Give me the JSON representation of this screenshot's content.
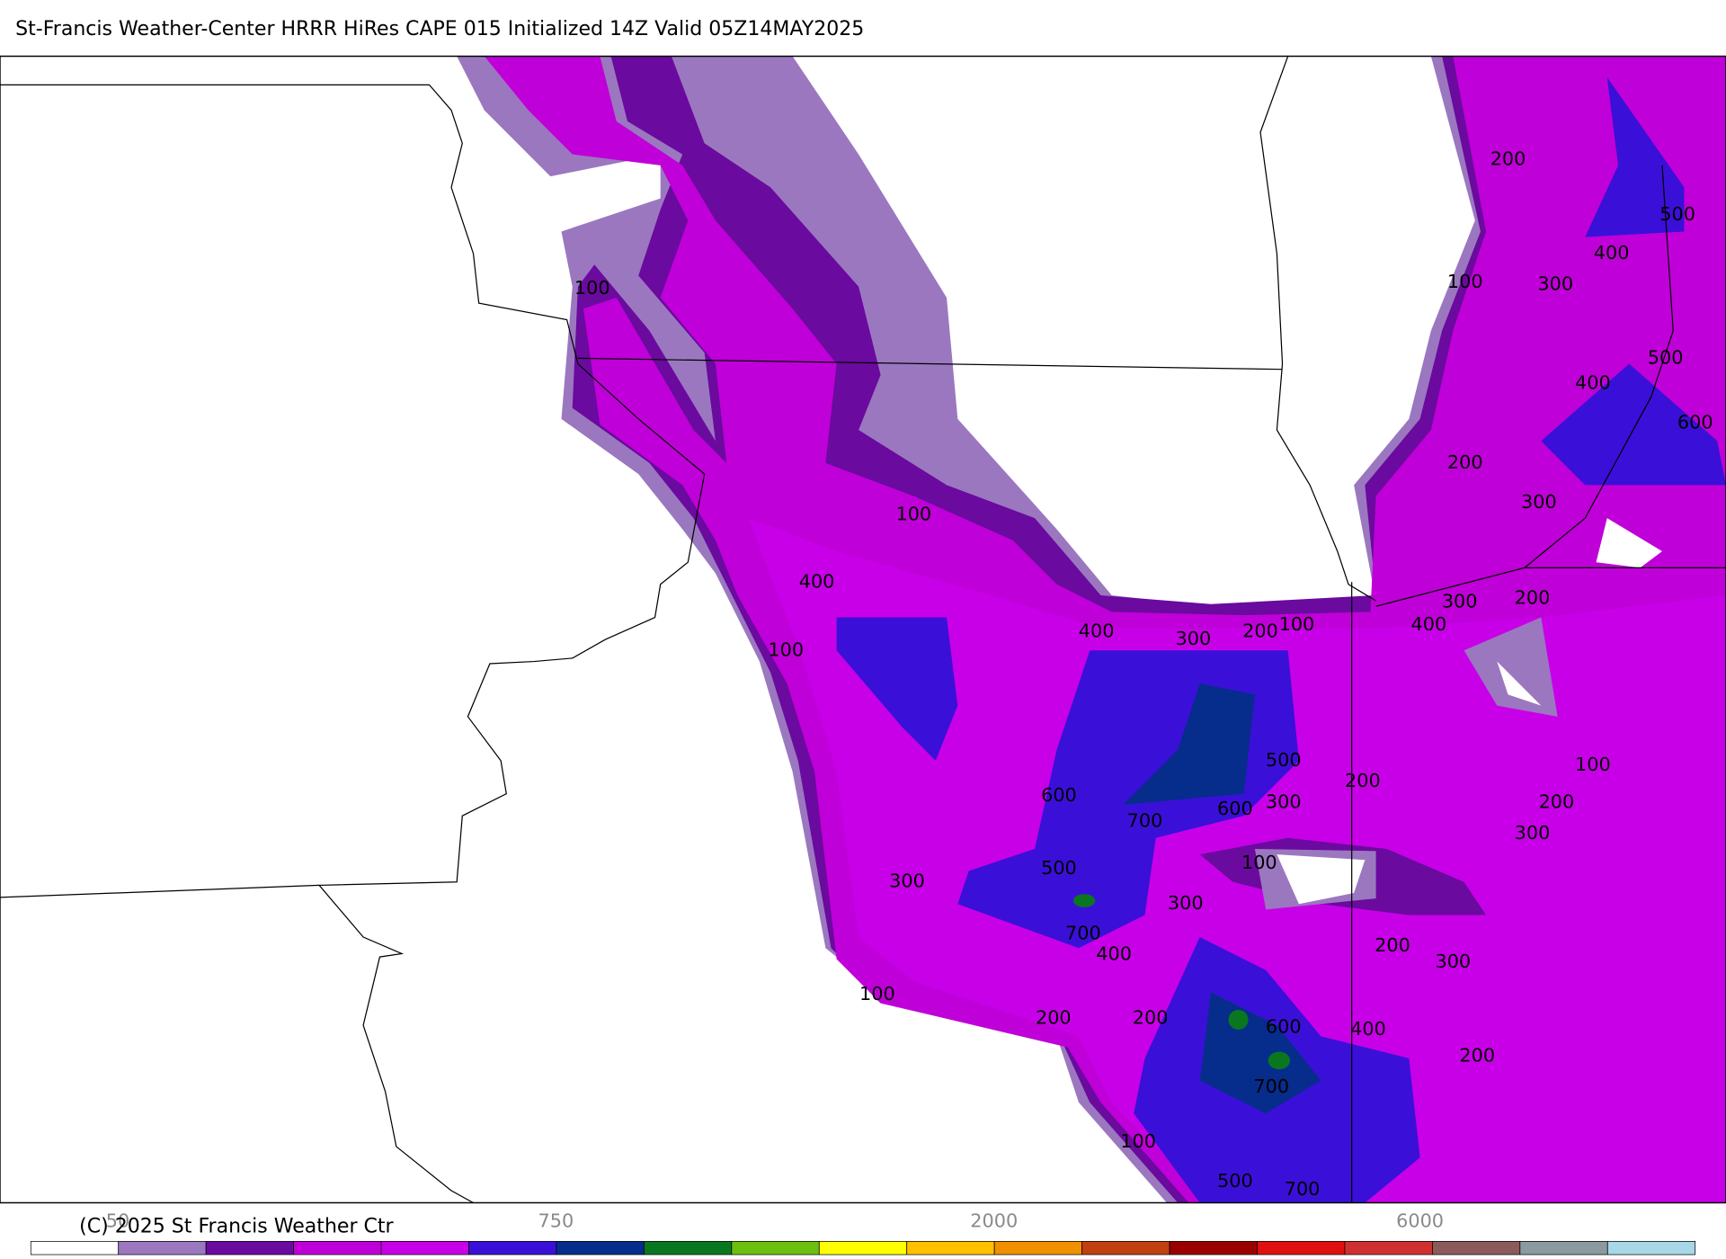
{
  "header": {
    "title": "St-Francis Weather-Center HRRR HiRes CAPE  015 Initialized  14Z Valid 05Z14MAY2025"
  },
  "map": {
    "contour_labels": [
      100,
      100,
      400,
      100,
      400,
      300,
      200,
      100,
      200,
      500,
      400,
      100,
      300,
      500,
      400,
      600,
      200,
      300,
      300,
      200,
      400,
      100,
      200,
      300,
      200,
      500,
      600,
      700,
      600,
      300,
      100,
      500,
      300,
      300,
      700,
      400,
      200,
      300,
      100,
      200,
      200,
      600,
      400,
      200,
      700,
      100,
      500,
      700
    ]
  },
  "colorbar": {
    "colors": [
      "#ffffff",
      "#9b77c0",
      "#6a0a9e",
      "#c000d8",
      "#c800e8",
      "#3a10d8",
      "#062c8c",
      "#0a7620",
      "#6cbf0c",
      "#ffff00",
      "#ffc000",
      "#f09000",
      "#c04010",
      "#9a0000",
      "#e01010",
      "#d03030",
      "#8c5a5a",
      "#8a9aa0",
      "#a8d8e8"
    ],
    "labels": [
      50,
      750,
      2000,
      6000
    ]
  },
  "footer": {
    "copyright": "(C) 2025 St Francis Weather Ctr"
  }
}
